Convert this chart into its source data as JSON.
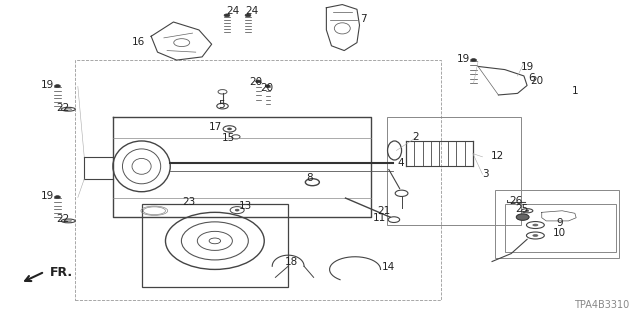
{
  "bg_color": "#ffffff",
  "diagram_code": "TPA4B3310",
  "fr_label": "FR.",
  "line_color": "#333333",
  "text_color": "#222222",
  "font_size_label": 7.5,
  "font_size_code": 7,
  "font_size_fr": 9
}
